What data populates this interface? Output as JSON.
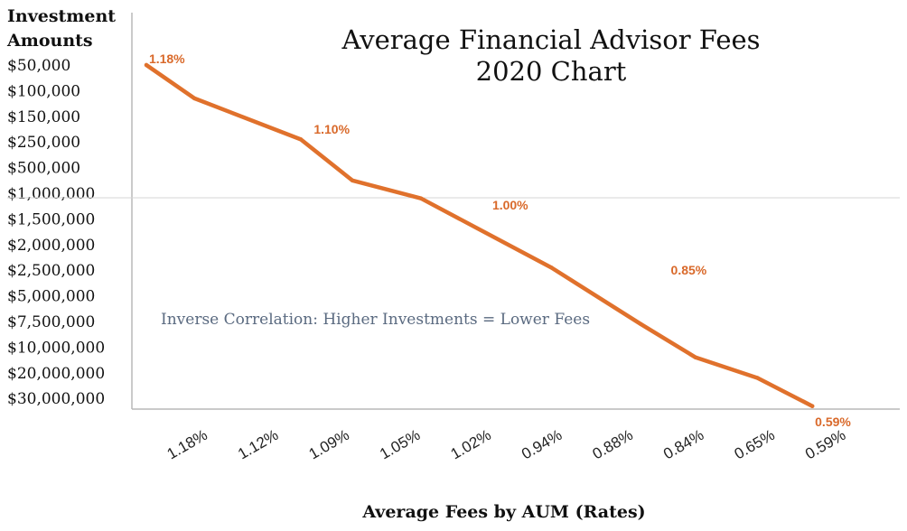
{
  "chart_data": {
    "type": "line",
    "title": "Average Financial Advisor Fees",
    "subtitle": "2020 Chart",
    "xlabel": "Average Fees by AUM (Rates)",
    "ylabel": "Investment Amounts",
    "ylabel_lines": [
      "Investment",
      "Amounts"
    ],
    "y_categories": [
      "$50,000",
      "$100,000",
      "$150,000",
      "$250,000",
      "$500,000",
      "$1,000,000",
      "$1,500,000",
      "$2,000,000",
      "$2,500,000",
      "$5,000,000",
      "$7,500,000",
      "$10,000,000",
      "$20,000,000",
      "$30,000,000"
    ],
    "x_categories": [
      "1.18%",
      "1.12%",
      "1.09%",
      "1.05%",
      "1.02%",
      "0.94%",
      "0.88%",
      "0.84%",
      "0.65%",
      "0.59%"
    ],
    "series": [
      {
        "color": "#e0712c",
        "points": [
          {
            "x": 0.0,
            "y": 0.0
          },
          {
            "x": 0.7,
            "y": 1.3
          },
          {
            "x": 2.25,
            "y": 2.9
          },
          {
            "x": 3.0,
            "y": 4.5
          },
          {
            "x": 4.0,
            "y": 5.2
          },
          {
            "x": 5.9,
            "y": 7.9
          },
          {
            "x": 7.2,
            "y": 10.1
          },
          {
            "x": 8.0,
            "y": 11.4
          },
          {
            "x": 8.9,
            "y": 12.2
          },
          {
            "x": 9.7,
            "y": 13.3
          }
        ]
      }
    ],
    "data_labels": [
      {
        "text": "1.18%",
        "x": 0.3,
        "y": -0.25
      },
      {
        "text": "1.10%",
        "x": 2.7,
        "y": 2.5
      },
      {
        "text": "1.00%",
        "x": 5.3,
        "y": 5.45
      },
      {
        "text": "0.85%",
        "x": 7.9,
        "y": 8.0
      },
      {
        "text": "0.59%",
        "x": 10.0,
        "y": 13.9
      }
    ],
    "annotation": "Inverse Correlation: Higher Investments = Lower Fees",
    "gridline_at": "$1,000,000",
    "legend": "none"
  },
  "colors": {
    "line": "#e0712c",
    "label": "#d9692a",
    "annotation": "#5a6a80",
    "axis": "#b8b8b8",
    "text": "#111111"
  }
}
